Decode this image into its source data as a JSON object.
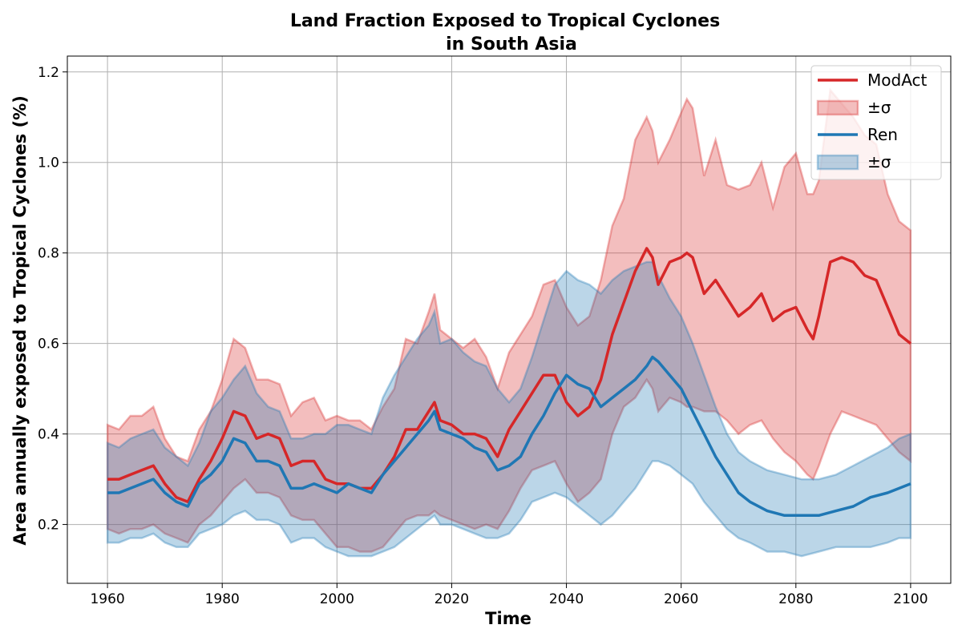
{
  "chart_data": {
    "type": "line",
    "title": "Land Fraction Exposed to Tropical Cyclones",
    "subtitle": "in South Asia",
    "xlabel": "Time",
    "ylabel": "Area annually exposed to Tropical Cyclones (%)",
    "xlim": [
      1953,
      2107
    ],
    "ylim": [
      0.07,
      1.235
    ],
    "xticks": [
      1960,
      1980,
      2000,
      2020,
      2040,
      2060,
      2080,
      2100
    ],
    "yticks": [
      0.2,
      0.4,
      0.6,
      0.8,
      1.0,
      1.2
    ],
    "xtick_labels": [
      "1960",
      "1980",
      "2000",
      "2020",
      "2040",
      "2060",
      "2080",
      "2100"
    ],
    "ytick_labels": [
      "0.2",
      "0.4",
      "0.6",
      "0.8",
      "1.0",
      "1.2"
    ],
    "grid": true,
    "legend_position": "top-right",
    "legend": [
      {
        "label": "ModAct",
        "kind": "line",
        "color": "#d62728"
      },
      {
        "label": "±σ",
        "kind": "band",
        "color": "#d62728"
      },
      {
        "label": "Ren",
        "kind": "line",
        "color": "#1f77b4"
      },
      {
        "label": "±σ",
        "kind": "band",
        "color": "#1f77b4"
      }
    ],
    "series": [
      {
        "name": "ModAct",
        "color": "#d62728",
        "x": [
          1960,
          1962,
          1964,
          1966,
          1968,
          1970,
          1972,
          1974,
          1976,
          1978,
          1980,
          1982,
          1984,
          1986,
          1988,
          1990,
          1992,
          1994,
          1996,
          1998,
          2000,
          2002,
          2004,
          2006,
          2008,
          2010,
          2012,
          2014,
          2016,
          2017,
          2018,
          2020,
          2022,
          2024,
          2026,
          2028,
          2030,
          2032,
          2034,
          2036,
          2038,
          2040,
          2042,
          2044,
          2046,
          2048,
          2050,
          2052,
          2054,
          2055,
          2056,
          2058,
          2060,
          2061,
          2062,
          2064,
          2066,
          2068,
          2070,
          2072,
          2074,
          2076,
          2078,
          2080,
          2082,
          2083,
          2084,
          2086,
          2088,
          2090,
          2092,
          2094,
          2096,
          2098,
          2100
        ],
        "y": [
          0.3,
          0.3,
          0.31,
          0.32,
          0.33,
          0.29,
          0.26,
          0.25,
          0.3,
          0.34,
          0.39,
          0.45,
          0.44,
          0.39,
          0.4,
          0.39,
          0.33,
          0.34,
          0.34,
          0.3,
          0.29,
          0.29,
          0.28,
          0.28,
          0.31,
          0.35,
          0.41,
          0.41,
          0.45,
          0.47,
          0.43,
          0.42,
          0.4,
          0.4,
          0.39,
          0.35,
          0.41,
          0.45,
          0.49,
          0.53,
          0.53,
          0.47,
          0.44,
          0.46,
          0.52,
          0.62,
          0.69,
          0.76,
          0.81,
          0.79,
          0.73,
          0.78,
          0.79,
          0.8,
          0.79,
          0.71,
          0.74,
          0.7,
          0.66,
          0.68,
          0.71,
          0.65,
          0.67,
          0.68,
          0.63,
          0.61,
          0.66,
          0.78,
          0.79,
          0.78,
          0.75,
          0.74,
          0.68,
          0.62,
          0.6
        ],
        "upper": [
          0.42,
          0.41,
          0.44,
          0.44,
          0.46,
          0.39,
          0.35,
          0.34,
          0.41,
          0.45,
          0.52,
          0.61,
          0.59,
          0.52,
          0.52,
          0.51,
          0.44,
          0.47,
          0.48,
          0.43,
          0.44,
          0.43,
          0.43,
          0.41,
          0.46,
          0.5,
          0.61,
          0.6,
          0.67,
          0.71,
          0.63,
          0.61,
          0.59,
          0.61,
          0.57,
          0.5,
          0.58,
          0.62,
          0.66,
          0.73,
          0.74,
          0.68,
          0.64,
          0.66,
          0.74,
          0.86,
          0.92,
          1.05,
          1.1,
          1.07,
          1.0,
          1.05,
          1.11,
          1.14,
          1.12,
          0.97,
          1.05,
          0.95,
          0.94,
          0.95,
          1.0,
          0.9,
          0.99,
          1.02,
          0.93,
          0.93,
          0.96,
          1.16,
          1.13,
          1.1,
          1.06,
          1.04,
          0.93,
          0.87,
          0.85
        ],
        "lower": [
          0.19,
          0.18,
          0.19,
          0.19,
          0.2,
          0.18,
          0.17,
          0.16,
          0.2,
          0.22,
          0.25,
          0.28,
          0.3,
          0.27,
          0.27,
          0.26,
          0.22,
          0.21,
          0.21,
          0.18,
          0.15,
          0.15,
          0.14,
          0.14,
          0.15,
          0.18,
          0.21,
          0.22,
          0.22,
          0.23,
          0.22,
          0.21,
          0.2,
          0.19,
          0.2,
          0.19,
          0.23,
          0.28,
          0.32,
          0.33,
          0.34,
          0.29,
          0.25,
          0.27,
          0.3,
          0.4,
          0.46,
          0.48,
          0.52,
          0.5,
          0.45,
          0.48,
          0.47,
          0.46,
          0.46,
          0.45,
          0.45,
          0.43,
          0.4,
          0.42,
          0.43,
          0.39,
          0.36,
          0.34,
          0.31,
          0.3,
          0.33,
          0.4,
          0.45,
          0.44,
          0.43,
          0.42,
          0.39,
          0.36,
          0.34
        ]
      },
      {
        "name": "Ren",
        "color": "#1f77b4",
        "x": [
          1960,
          1962,
          1964,
          1966,
          1968,
          1970,
          1972,
          1974,
          1976,
          1978,
          1980,
          1982,
          1984,
          1986,
          1988,
          1990,
          1992,
          1994,
          1996,
          1998,
          2000,
          2002,
          2004,
          2006,
          2008,
          2010,
          2012,
          2014,
          2016,
          2017,
          2018,
          2020,
          2022,
          2024,
          2026,
          2028,
          2030,
          2032,
          2034,
          2036,
          2038,
          2040,
          2042,
          2044,
          2046,
          2048,
          2050,
          2052,
          2054,
          2055,
          2056,
          2058,
          2060,
          2062,
          2064,
          2066,
          2068,
          2070,
          2072,
          2075,
          2078,
          2081,
          2084,
          2087,
          2090,
          2093,
          2096,
          2098,
          2100
        ],
        "y": [
          0.27,
          0.27,
          0.28,
          0.29,
          0.3,
          0.27,
          0.25,
          0.24,
          0.29,
          0.31,
          0.34,
          0.39,
          0.38,
          0.34,
          0.34,
          0.33,
          0.28,
          0.28,
          0.29,
          0.28,
          0.27,
          0.29,
          0.28,
          0.27,
          0.31,
          0.34,
          0.37,
          0.4,
          0.43,
          0.45,
          0.41,
          0.4,
          0.39,
          0.37,
          0.36,
          0.32,
          0.33,
          0.35,
          0.4,
          0.44,
          0.49,
          0.53,
          0.51,
          0.5,
          0.46,
          0.48,
          0.5,
          0.52,
          0.55,
          0.57,
          0.56,
          0.53,
          0.5,
          0.45,
          0.4,
          0.35,
          0.31,
          0.27,
          0.25,
          0.23,
          0.22,
          0.22,
          0.22,
          0.23,
          0.24,
          0.26,
          0.27,
          0.28,
          0.29
        ],
        "upper": [
          0.38,
          0.37,
          0.39,
          0.4,
          0.41,
          0.37,
          0.35,
          0.33,
          0.38,
          0.45,
          0.48,
          0.52,
          0.55,
          0.49,
          0.46,
          0.45,
          0.39,
          0.39,
          0.4,
          0.4,
          0.42,
          0.42,
          0.41,
          0.4,
          0.48,
          0.53,
          0.57,
          0.61,
          0.64,
          0.67,
          0.6,
          0.61,
          0.58,
          0.56,
          0.55,
          0.5,
          0.47,
          0.5,
          0.57,
          0.65,
          0.73,
          0.76,
          0.74,
          0.73,
          0.71,
          0.74,
          0.76,
          0.77,
          0.78,
          0.78,
          0.75,
          0.7,
          0.66,
          0.6,
          0.53,
          0.46,
          0.4,
          0.36,
          0.34,
          0.32,
          0.31,
          0.3,
          0.3,
          0.31,
          0.33,
          0.35,
          0.37,
          0.39,
          0.4
        ],
        "lower": [
          0.16,
          0.16,
          0.17,
          0.17,
          0.18,
          0.16,
          0.15,
          0.15,
          0.18,
          0.19,
          0.2,
          0.22,
          0.23,
          0.21,
          0.21,
          0.2,
          0.16,
          0.17,
          0.17,
          0.15,
          0.14,
          0.13,
          0.13,
          0.13,
          0.14,
          0.15,
          0.17,
          0.19,
          0.21,
          0.22,
          0.2,
          0.2,
          0.19,
          0.18,
          0.17,
          0.17,
          0.18,
          0.21,
          0.25,
          0.26,
          0.27,
          0.26,
          0.24,
          0.22,
          0.2,
          0.22,
          0.25,
          0.28,
          0.32,
          0.34,
          0.34,
          0.33,
          0.31,
          0.29,
          0.25,
          0.22,
          0.19,
          0.17,
          0.16,
          0.14,
          0.14,
          0.13,
          0.14,
          0.15,
          0.15,
          0.15,
          0.16,
          0.17,
          0.17
        ]
      }
    ]
  }
}
